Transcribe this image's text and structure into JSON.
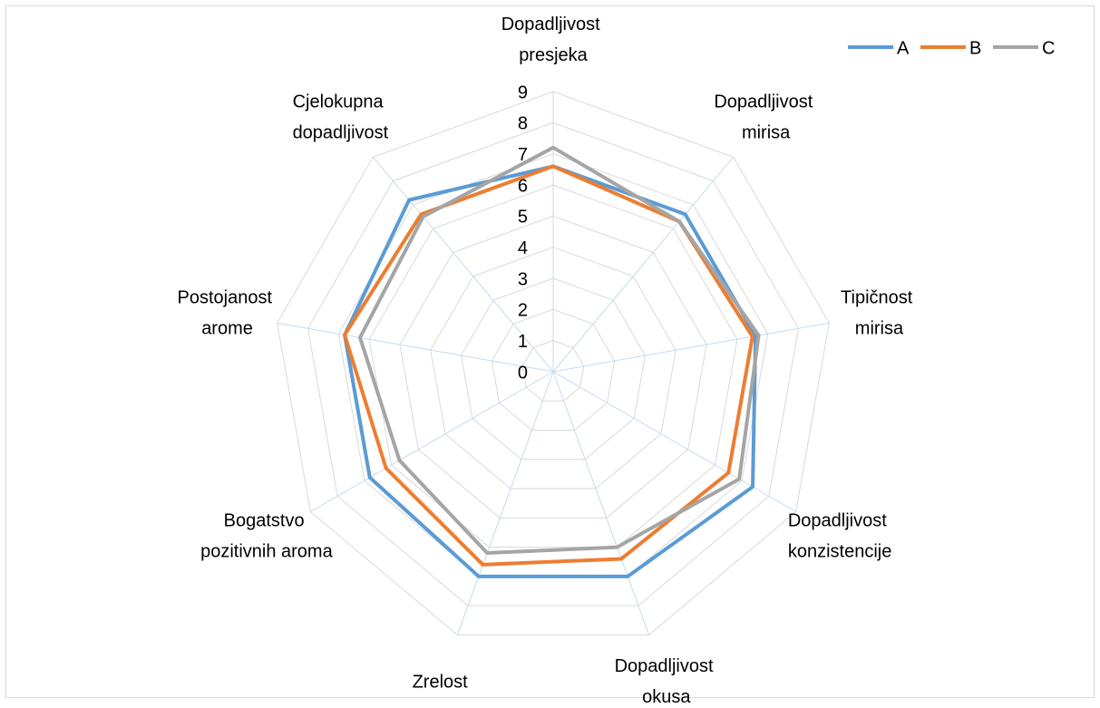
{
  "chart_data": {
    "type": "radar",
    "categories": [
      "Dopadljivost presjeka",
      "Dopadljivost mirisa",
      "Tipičnost mirisa",
      "Dopadljivost konzistencije",
      "Dopadljivost okusa",
      "Zrelost",
      "Bogatstvo pozitivnih aroma",
      "Postojanost arome",
      "Cjelokupna dopadljivost"
    ],
    "series": [
      {
        "name": "A",
        "color": "#5b9bd5",
        "values": [
          6.6,
          6.6,
          6.6,
          7.4,
          7.0,
          7.0,
          6.8,
          6.8,
          7.2
        ]
      },
      {
        "name": "B",
        "color": "#ed7d31",
        "values": [
          6.6,
          6.3,
          6.5,
          6.5,
          6.4,
          6.6,
          6.2,
          6.8,
          6.6
        ]
      },
      {
        "name": "C",
        "color": "#a5a5a5",
        "values": [
          7.2,
          6.3,
          6.7,
          6.9,
          6.0,
          6.2,
          5.7,
          6.3,
          6.5
        ]
      }
    ],
    "ylim": [
      0,
      9
    ],
    "yticks": [
      0,
      1,
      2,
      3,
      4,
      5,
      6,
      7,
      8,
      9
    ],
    "grid": true,
    "legend": "top-right"
  }
}
